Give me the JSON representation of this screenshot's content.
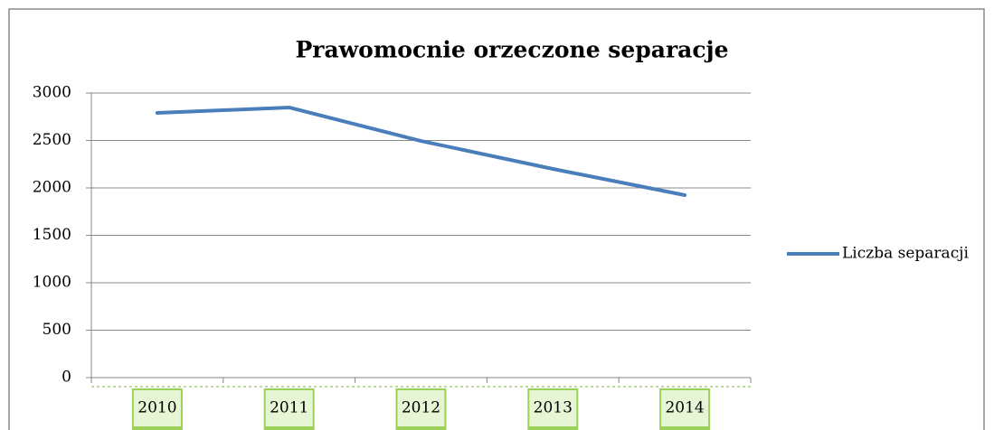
{
  "chart_data": {
    "type": "line",
    "title": "Prawomocnie orzeczone separacje",
    "categories": [
      "2010",
      "2011",
      "2012",
      "2013",
      "2014"
    ],
    "series": [
      {
        "name": "Liczba separacji",
        "color": "#4a7ebb",
        "values": [
          2790,
          2848,
          2495,
          2200,
          1924
        ]
      }
    ],
    "ylim": [
      0,
      3000
    ],
    "yticks": [
      0,
      500,
      1000,
      1500,
      2000,
      2500,
      3000
    ],
    "grid": true,
    "legend": "right"
  }
}
